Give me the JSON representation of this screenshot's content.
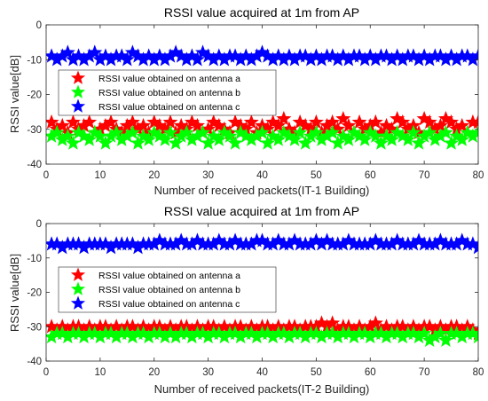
{
  "chart_data": [
    {
      "type": "scatter",
      "title": "RSSI value acquired at 1m from AP",
      "xlabel": "Number of received packets(IT-1 Building)",
      "ylabel": "RSSI value[dB]",
      "xlim": [
        0,
        80
      ],
      "ylim": [
        -40,
        0
      ],
      "xticks": [
        0,
        10,
        20,
        30,
        40,
        50,
        60,
        70,
        80
      ],
      "yticks": [
        0,
        -10,
        -20,
        -30,
        -40
      ],
      "grid": false,
      "legend_position": "middle-left",
      "x": [
        1,
        2,
        3,
        4,
        5,
        6,
        7,
        8,
        9,
        10,
        11,
        12,
        13,
        14,
        15,
        16,
        17,
        18,
        19,
        20,
        21,
        22,
        23,
        24,
        25,
        26,
        27,
        28,
        29,
        30,
        31,
        32,
        33,
        34,
        35,
        36,
        37,
        38,
        39,
        40,
        41,
        42,
        43,
        44,
        45,
        46,
        47,
        48,
        49,
        50,
        51,
        52,
        53,
        54,
        55,
        56,
        57,
        58,
        59,
        60,
        61,
        62,
        63,
        64,
        65,
        66,
        67,
        68,
        69,
        70,
        71,
        72,
        73,
        74,
        75,
        76,
        77,
        78,
        79,
        80
      ],
      "series": [
        {
          "name": "RSSI value obtained on antenna a",
          "color": "#ff0000",
          "values": [
            -28,
            -30,
            -29,
            -31,
            -28,
            -30,
            -29,
            -28,
            -31,
            -30,
            -29,
            -28,
            -30,
            -31,
            -29,
            -28,
            -30,
            -29,
            -31,
            -28,
            -29,
            -30,
            -28,
            -31,
            -29,
            -30,
            -28,
            -29,
            -31,
            -30,
            -28,
            -29,
            -30,
            -31,
            -28,
            -29,
            -30,
            -28,
            -31,
            -29,
            -30,
            -28,
            -29,
            -27,
            -30,
            -31,
            -28,
            -29,
            -30,
            -28,
            -31,
            -29,
            -28,
            -30,
            -27,
            -29,
            -31,
            -28,
            -30,
            -29,
            -28,
            -31,
            -29,
            -30,
            -27,
            -28,
            -30,
            -29,
            -31,
            -27,
            -28,
            -30,
            -29,
            -27,
            -28,
            -30,
            -29,
            -31,
            -28,
            -28
          ]
        },
        {
          "name": "RSSI value obtained on antenna b",
          "color": "#00ff00",
          "values": [
            -32,
            -31,
            -33,
            -32,
            -34,
            -31,
            -32,
            -33,
            -31,
            -32,
            -34,
            -32,
            -31,
            -33,
            -32,
            -31,
            -34,
            -32,
            -33,
            -31,
            -32,
            -33,
            -31,
            -34,
            -32,
            -31,
            -33,
            -32,
            -31,
            -34,
            -32,
            -33,
            -31,
            -32,
            -34,
            -31,
            -32,
            -33,
            -32,
            -31,
            -34,
            -32,
            -33,
            -31,
            -32,
            -33,
            -31,
            -34,
            -32,
            -31,
            -33,
            -32,
            -31,
            -34,
            -32,
            -33,
            -31,
            -32,
            -33,
            -31,
            -32,
            -34,
            -32,
            -33,
            -31,
            -32,
            -33,
            -31,
            -34,
            -32,
            -31,
            -33,
            -32,
            -31,
            -34,
            -32,
            -33,
            -31,
            -32,
            -31
          ]
        },
        {
          "name": "RSSI value obtained on antenna c",
          "color": "#0000ff",
          "values": [
            -9,
            -10,
            -9,
            -8,
            -10,
            -9,
            -10,
            -9,
            -8,
            -10,
            -9,
            -10,
            -9,
            -9,
            -10,
            -8,
            -9,
            -10,
            -9,
            -10,
            -9,
            -10,
            -9,
            -8,
            -9,
            -10,
            -9,
            -10,
            -8,
            -9,
            -10,
            -9,
            -10,
            -9,
            -9,
            -10,
            -9,
            -10,
            -9,
            -8,
            -9,
            -10,
            -9,
            -10,
            -9,
            -10,
            -9,
            -9,
            -10,
            -9,
            -10,
            -9,
            -9,
            -10,
            -9,
            -10,
            -9,
            -9,
            -10,
            -9,
            -10,
            -9,
            -9,
            -10,
            -9,
            -10,
            -9,
            -9,
            -10,
            -9,
            -10,
            -9,
            -9,
            -10,
            -9,
            -10,
            -9,
            -9,
            -10,
            -9
          ]
        }
      ]
    },
    {
      "type": "scatter",
      "title": "RSSI value acquired at 1m from AP",
      "xlabel": "Number of received packets(IT-2 Building)",
      "ylabel": "RSSI value[dB]",
      "xlim": [
        0,
        80
      ],
      "ylim": [
        -40,
        0
      ],
      "xticks": [
        0,
        10,
        20,
        30,
        40,
        50,
        60,
        70,
        80
      ],
      "yticks": [
        0,
        -10,
        -20,
        -30,
        -40
      ],
      "grid": false,
      "legend_position": "middle-left",
      "x": [
        1,
        2,
        3,
        4,
        5,
        6,
        7,
        8,
        9,
        10,
        11,
        12,
        13,
        14,
        15,
        16,
        17,
        18,
        19,
        20,
        21,
        22,
        23,
        24,
        25,
        26,
        27,
        28,
        29,
        30,
        31,
        32,
        33,
        34,
        35,
        36,
        37,
        38,
        39,
        40,
        41,
        42,
        43,
        44,
        45,
        46,
        47,
        48,
        49,
        50,
        51,
        52,
        53,
        54,
        55,
        56,
        57,
        58,
        59,
        60,
        61,
        62,
        63,
        64,
        65,
        66,
        67,
        68,
        69,
        70,
        71,
        72,
        73,
        74,
        75,
        76,
        77,
        78,
        79,
        80
      ],
      "series": [
        {
          "name": "RSSI value obtained on antenna a",
          "color": "#ff0000",
          "values": [
            -30,
            -31,
            -30,
            -31,
            -30,
            -30,
            -31,
            -30,
            -31,
            -30,
            -30,
            -31,
            -30,
            -31,
            -30,
            -30,
            -31,
            -30,
            -31,
            -30,
            -30,
            -31,
            -30,
            -31,
            -30,
            -30,
            -31,
            -30,
            -31,
            -30,
            -30,
            -31,
            -30,
            -31,
            -30,
            -30,
            -31,
            -30,
            -31,
            -30,
            -30,
            -31,
            -30,
            -31,
            -30,
            -30,
            -31,
            -30,
            -30,
            -30,
            -29,
            -30,
            -29,
            -31,
            -30,
            -30,
            -31,
            -30,
            -31,
            -30,
            -29,
            -31,
            -30,
            -31,
            -30,
            -30,
            -31,
            -30,
            -31,
            -30,
            -30,
            -31,
            -30,
            -31,
            -30,
            -30,
            -31,
            -30,
            -31,
            -32
          ]
        },
        {
          "name": "RSSI value obtained on antenna b",
          "color": "#00ff00",
          "values": [
            -33,
            -32,
            -32,
            -33,
            -32,
            -32,
            -33,
            -32,
            -32,
            -33,
            -32,
            -32,
            -33,
            -32,
            -32,
            -33,
            -32,
            -32,
            -33,
            -32,
            -32,
            -33,
            -32,
            -33,
            -32,
            -32,
            -33,
            -32,
            -32,
            -33,
            -32,
            -32,
            -33,
            -32,
            -32,
            -33,
            -32,
            -32,
            -33,
            -32,
            -32,
            -33,
            -32,
            -32,
            -33,
            -32,
            -32,
            -33,
            -32,
            -32,
            -33,
            -32,
            -32,
            -33,
            -32,
            -32,
            -33,
            -32,
            -32,
            -33,
            -32,
            -32,
            -33,
            -32,
            -32,
            -33,
            -32,
            -32,
            -33,
            -32,
            -34,
            -33,
            -32,
            -34,
            -32,
            -32,
            -33,
            -32,
            -32,
            -33
          ]
        },
        {
          "name": "RSSI value obtained on antenna c",
          "color": "#0000ff",
          "values": [
            -6,
            -6,
            -7,
            -6,
            -6,
            -6,
            -7,
            -6,
            -6,
            -6,
            -6,
            -7,
            -6,
            -6,
            -6,
            -6,
            -7,
            -6,
            -6,
            -6,
            -5,
            -6,
            -6,
            -6,
            -5,
            -6,
            -6,
            -5,
            -6,
            -6,
            -6,
            -5,
            -6,
            -6,
            -5,
            -6,
            -6,
            -6,
            -5,
            -5,
            -6,
            -6,
            -5,
            -6,
            -6,
            -5,
            -6,
            -6,
            -6,
            -5,
            -6,
            -5,
            -6,
            -6,
            -6,
            -5,
            -6,
            -6,
            -6,
            -6,
            -5,
            -6,
            -6,
            -6,
            -5,
            -6,
            -6,
            -6,
            -5,
            -6,
            -6,
            -6,
            -5,
            -6,
            -6,
            -6,
            -5,
            -6,
            -6,
            -7
          ]
        }
      ]
    }
  ]
}
